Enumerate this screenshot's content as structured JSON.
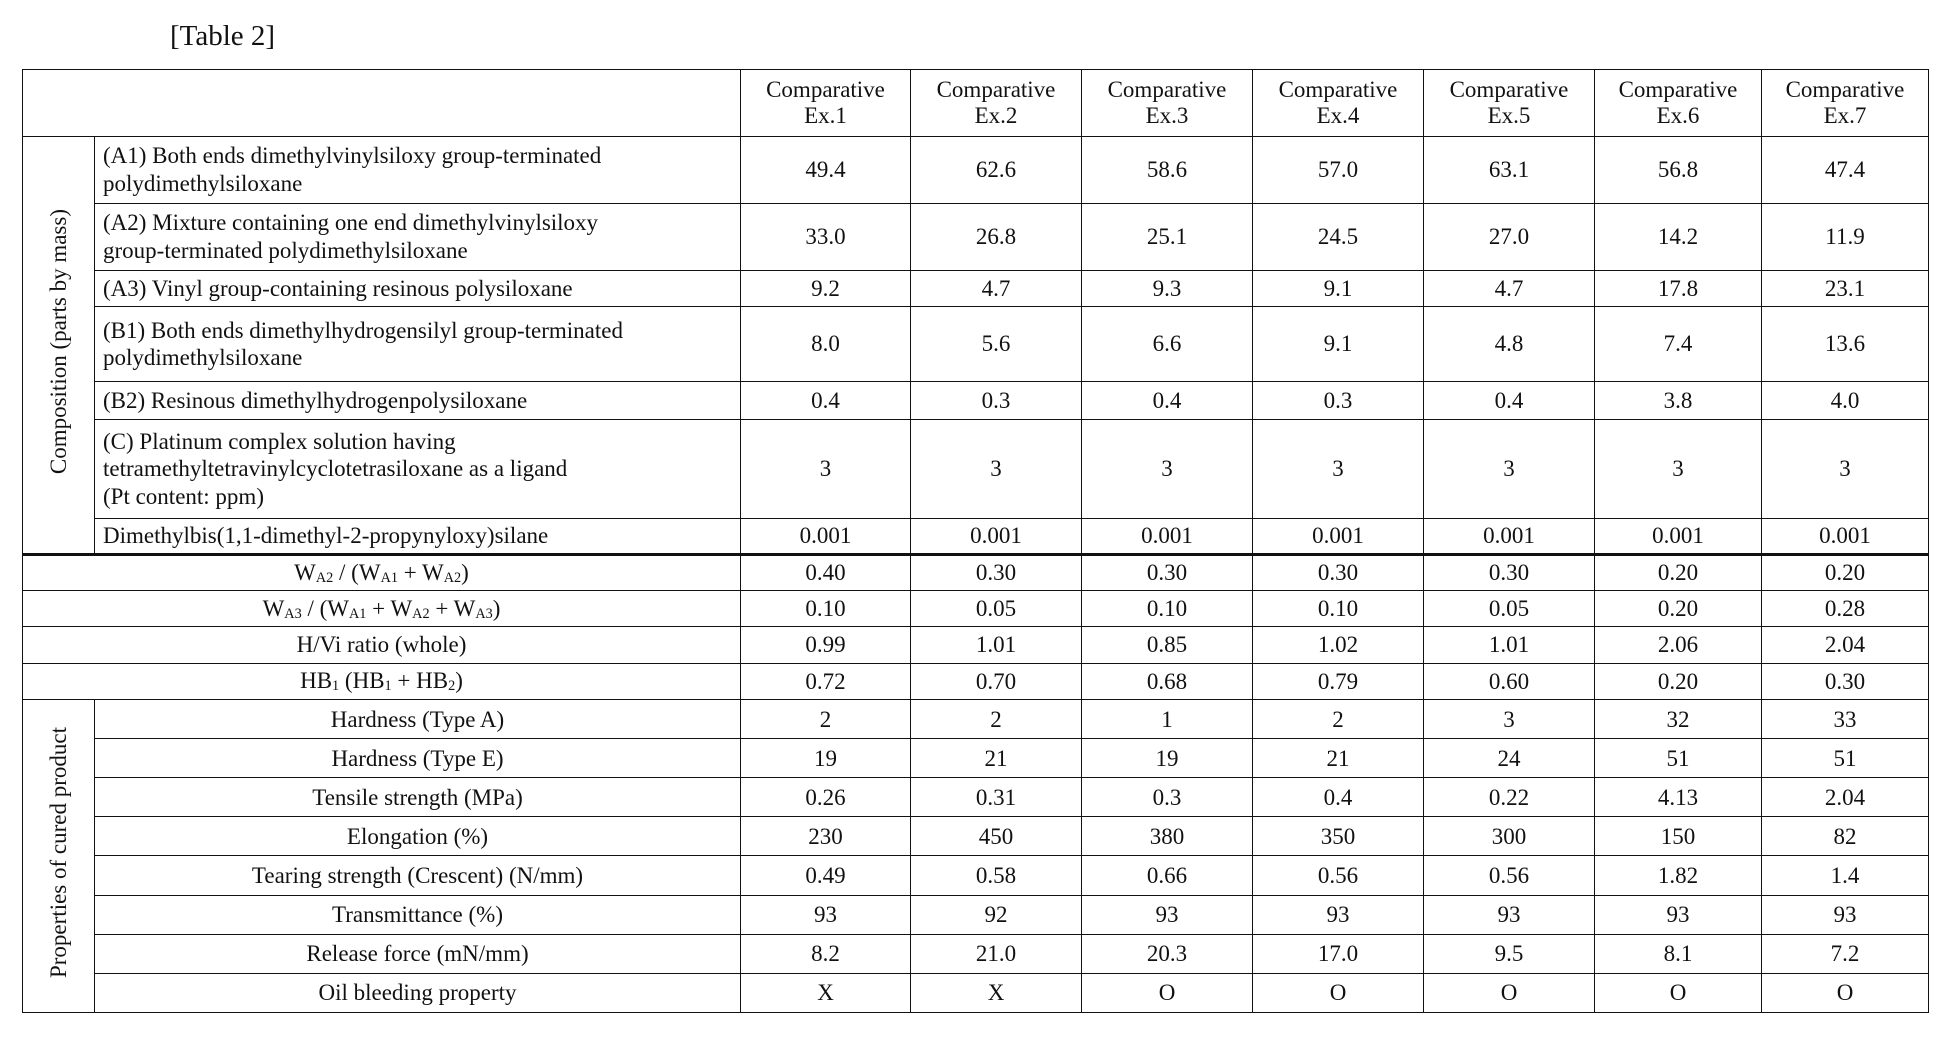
{
  "caption": "[Table 2]",
  "header": {
    "columns": [
      {
        "l1": "Comparative",
        "l2": "Ex.1"
      },
      {
        "l1": "Comparative",
        "l2": "Ex.2"
      },
      {
        "l1": "Comparative",
        "l2": "Ex.3"
      },
      {
        "l1": "Comparative",
        "l2": "Ex.4"
      },
      {
        "l1": "Comparative",
        "l2": "Ex.5"
      },
      {
        "l1": "Comparative",
        "l2": "Ex.6"
      },
      {
        "l1": "Comparative",
        "l2": "Ex.7"
      }
    ]
  },
  "composition": {
    "group_label": "Composition (parts by mass)",
    "rows": [
      {
        "label": [
          "(A1) Both ends dimethylvinylsiloxy group-terminated",
          "polydimethylsiloxane"
        ],
        "values": [
          "49.4",
          "62.6",
          "58.6",
          "57.0",
          "63.1",
          "56.8",
          "47.4"
        ]
      },
      {
        "label": [
          "(A2) Mixture containing one end dimethylvinylsiloxy",
          "group-terminated polydimethylsiloxane"
        ],
        "values": [
          "33.0",
          "26.8",
          "25.1",
          "24.5",
          "27.0",
          "14.2",
          "11.9"
        ]
      },
      {
        "label": [
          "(A3) Vinyl group-containing resinous polysiloxane"
        ],
        "values": [
          "9.2",
          "4.7",
          "9.3",
          "9.1",
          "4.7",
          "17.8",
          "23.1"
        ]
      },
      {
        "label": [
          "(B1) Both ends dimethylhydrogensilyl group-terminated",
          "polydimethylsiloxane"
        ],
        "values": [
          "8.0",
          "5.6",
          "6.6",
          "9.1",
          "4.8",
          "7.4",
          "13.6"
        ]
      },
      {
        "label": [
          "(B2) Resinous dimethylhydrogenpolysiloxane"
        ],
        "values": [
          "0.4",
          "0.3",
          "0.4",
          "0.3",
          "0.4",
          "3.8",
          "4.0"
        ]
      },
      {
        "label": [
          "(C) Platinum complex solution having",
          "tetramethyltetravinylcyclotetrasiloxane as a ligand",
          "(Pt content: ppm)"
        ],
        "values": [
          "3",
          "3",
          "3",
          "3",
          "3",
          "3",
          "3"
        ]
      },
      {
        "label": [
          "Dimethylbis(1,1-dimethyl-2-propynyloxy)silane"
        ],
        "values": [
          "0.001",
          "0.001",
          "0.001",
          "0.001",
          "0.001",
          "0.001",
          "0.001"
        ]
      }
    ]
  },
  "ratios": {
    "rows": [
      {
        "label": {
          "a": "W",
          "sa": "A2",
          "b": " / (W",
          "sb": "A1",
          "c": " + W",
          "sc": "A2",
          "d": ")"
        },
        "values": [
          "0.40",
          "0.30",
          "0.30",
          "0.30",
          "0.30",
          "0.20",
          "0.20"
        ]
      },
      {
        "label": {
          "a": "W",
          "sa": "A3",
          "b": " / (W",
          "sb": "A1",
          "c": " + W",
          "sc": "A2",
          "d": " + W",
          "sd": "A3",
          "e": ")"
        },
        "values": [
          "0.10",
          "0.05",
          "0.10",
          "0.10",
          "0.05",
          "0.20",
          "0.28"
        ]
      },
      {
        "label": {
          "a": "H/Vi ratio (whole)"
        },
        "values": [
          "0.99",
          "1.01",
          "0.85",
          "1.02",
          "1.01",
          "2.06",
          "2.04"
        ]
      },
      {
        "label": {
          "a": "HB",
          "sa": "1",
          "b": " (HB",
          "sb": "1",
          "c": " + HB",
          "sc": "2",
          "d": ")"
        },
        "values": [
          "0.72",
          "0.70",
          "0.68",
          "0.79",
          "0.60",
          "0.20",
          "0.30"
        ]
      }
    ]
  },
  "properties": {
    "group_label": "Properties of cured product",
    "rows": [
      {
        "label": "Hardness (Type A)",
        "values": [
          "2",
          "2",
          "1",
          "2",
          "3",
          "32",
          "33"
        ]
      },
      {
        "label": "Hardness (Type E)",
        "values": [
          "19",
          "21",
          "19",
          "21",
          "24",
          "51",
          "51"
        ]
      },
      {
        "label": "Tensile strength (MPa)",
        "values": [
          "0.26",
          "0.31",
          "0.3",
          "0.4",
          "0.22",
          "4.13",
          "2.04"
        ]
      },
      {
        "label": "Elongation (%)",
        "values": [
          "230",
          "450",
          "380",
          "350",
          "300",
          "150",
          "82"
        ]
      },
      {
        "label": "Tearing strength (Crescent) (N/mm)",
        "values": [
          "0.49",
          "0.58",
          "0.66",
          "0.56",
          "0.56",
          "1.82",
          "1.4"
        ]
      },
      {
        "label": "Transmittance (%)",
        "values": [
          "93",
          "92",
          "93",
          "93",
          "93",
          "93",
          "93"
        ]
      },
      {
        "label": "Release force (mN/mm)",
        "values": [
          "8.2",
          "21.0",
          "20.3",
          "17.0",
          "9.5",
          "8.1",
          "7.2"
        ]
      },
      {
        "label": "Oil bleeding property",
        "values": [
          "X",
          "X",
          "O",
          "O",
          "O",
          "O",
          "O"
        ]
      }
    ]
  }
}
